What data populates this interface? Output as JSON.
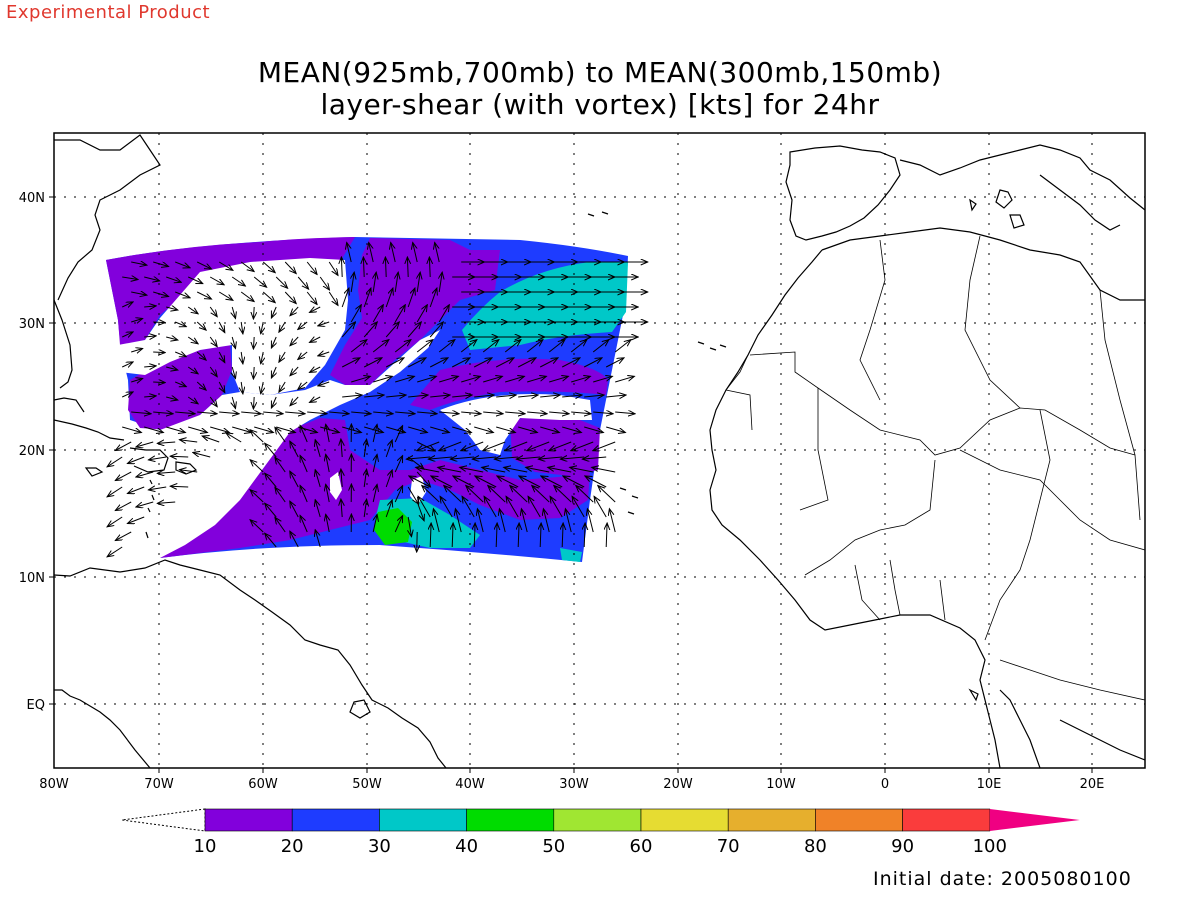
{
  "header": {
    "tag": "Experimental Product",
    "title_line1": "MEAN(925mb,700mb) to MEAN(300mb,150mb)",
    "title_line2": "layer-shear (with vortex) [kts] for 24hr"
  },
  "footer": {
    "initial_date": "Initial date: 2005080100"
  },
  "axes": {
    "lon_labels": [
      "80W",
      "70W",
      "60W",
      "50W",
      "40W",
      "30W",
      "20W",
      "10W",
      "0",
      "10E",
      "20E"
    ],
    "lat_labels": [
      "40N",
      "30N",
      "20N",
      "10N",
      "EQ"
    ]
  },
  "colorbar": {
    "ticks": [
      "10",
      "20",
      "30",
      "40",
      "50",
      "60",
      "70",
      "80",
      "90",
      "100"
    ],
    "colors": [
      "#8200dc",
      "#1e3cff",
      "#00c8c8",
      "#00dc00",
      "#a0e632",
      "#e6dc32",
      "#e6af2d",
      "#f08228",
      "#fa3c3c",
      "#f00082"
    ]
  }
}
